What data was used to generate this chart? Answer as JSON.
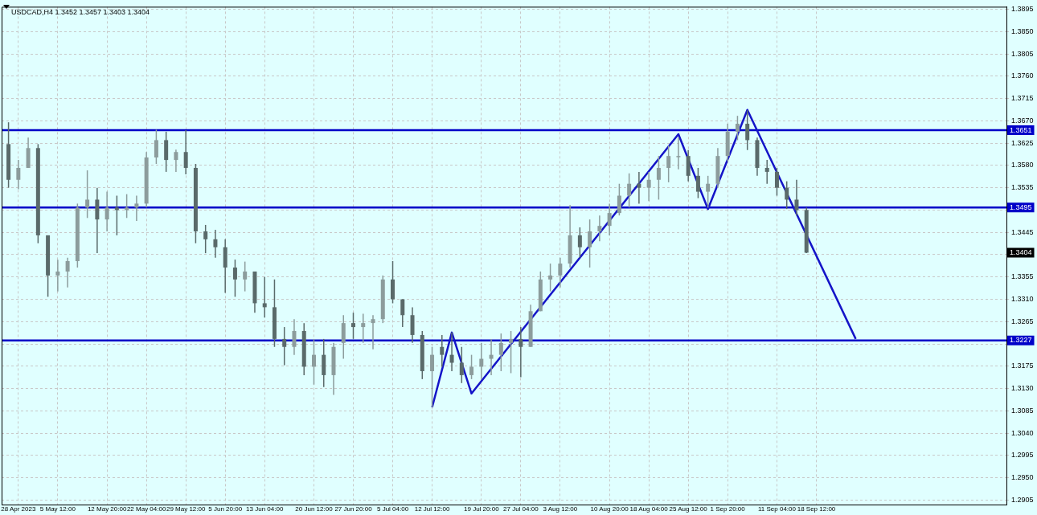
{
  "chart_data": {
    "type": "candlestick",
    "title": "USDCAD,H4 1.3452 1.3457 1.3403 1.3404",
    "categories": [
      null,
      "28 Apr 2023",
      null,
      null,
      null,
      "5 May 12:00",
      null,
      null,
      null,
      null,
      "12 May 20:00",
      null,
      null,
      null,
      "22 May 04:00",
      null,
      null,
      null,
      "29 May 12:00",
      null,
      null,
      null,
      "5 Jun 20:00",
      null,
      null,
      null,
      "13 Jun 04:00",
      null,
      null,
      null,
      null,
      "20 Jun 12:00",
      null,
      null,
      null,
      "27 Jun 20:00",
      null,
      null,
      null,
      "5 Jul 04:00",
      null,
      null,
      null,
      "12 Jul 12:00",
      null,
      null,
      null,
      null,
      "19 Jul 20:00",
      null,
      null,
      null,
      "27 Jul 04:00",
      null,
      null,
      null,
      "3 Aug 12:00",
      null,
      null,
      null,
      null,
      "10 Aug 20:00",
      null,
      null,
      null,
      "18 Aug 04:00",
      null,
      null,
      null,
      "25 Aug 12:00",
      null,
      null,
      null,
      "1 Sep 20:00",
      null,
      null,
      null,
      null,
      "11 Sep 04:00",
      null,
      null,
      null,
      "18 Sep 12:00",
      null,
      null,
      null,
      null,
      null,
      null,
      null,
      null,
      null,
      null,
      null,
      null,
      null,
      null,
      null,
      null,
      null,
      null,
      null
    ],
    "colors": [
      "#5a6a6a",
      "#8c9c9c",
      "#8c9c9c",
      "#5a6a6a",
      "#5a6a6a",
      "#8c9c9c",
      "#8c9c9c",
      "#8c9c9c",
      "#8c9c9c",
      "#5a6a6a",
      "#8c9c9c",
      "#5a6a6a",
      "#8c9c9c",
      "#8c9c9c",
      "#8c9c9c",
      "#8c9c9c",
      "#5a6a6a",
      "#8c9c9c",
      "#5a6a6a",
      "#5a6a6a",
      "#5a6a6a",
      "#5a6a6a",
      "#5a6a6a",
      "#5a6a6a",
      "#8c9c9c",
      "#5a6a6a",
      "#5a6a6a",
      "#5a6a6a",
      "#5a6a6a",
      "#8c9c9c",
      "#5a6a6a",
      "#8c9c9c",
      "#5a6a6a",
      "#8c9c9c",
      "#8c9c9c",
      "#5a6a6a",
      "#8c9c9c",
      "#8c9c9c",
      "#8c9c9c",
      "#5a6a6a",
      "#5a6a6a",
      "#5a6a6a",
      "#5a6a6a",
      "#8c9c9c",
      "#5a6a6a",
      "#5a6a6a",
      "#5a6a6a",
      "#8c9c9c",
      "#8c9c9c",
      "#8c9c9c",
      "#8c9c9c",
      "#8c9c9c",
      "#5a6a6a",
      "#8c9c9c",
      "#8c9c9c",
      "#8c9c9c",
      "#8c9c9c",
      "#8c9c9c",
      "#5a6a6a",
      "#8c9c9c",
      "#8c9c9c",
      "#8c9c9c",
      "#8c9c9c",
      "#8c9c9c",
      "#5a6a6a",
      "#8c9c9c",
      "#8c9c9c",
      "#8c9c9c",
      "#8c9c9c",
      "#5a6a6a",
      "#5a6a6a",
      "#8c9c9c",
      "#8c9c9c",
      "#8c9c9c",
      "#8c9c9c",
      "#5a6a6a",
      "#5a6a6a",
      "#5a6a6a",
      "#5a6a6a",
      "#5a6a6a",
      "#5a6a6a",
      "#5a6a6a",
      null,
      null,
      null,
      null,
      null,
      null,
      null,
      null,
      null,
      null,
      null,
      null,
      null,
      null,
      null,
      null,
      null,
      null,
      null,
      null
    ],
    "ohlc": [
      [
        1.3623,
        1.3667,
        1.3535,
        1.3551
      ],
      [
        1.3551,
        1.3591,
        1.3532,
        1.3575
      ],
      [
        1.3575,
        1.3636,
        1.3575,
        1.3615
      ],
      [
        1.3615,
        1.3623,
        1.3423,
        1.3439
      ],
      [
        1.3439,
        1.3439,
        1.3315,
        1.3358
      ],
      [
        1.3358,
        1.339,
        1.3326,
        1.3366
      ],
      [
        1.3366,
        1.3394,
        1.3334,
        1.3387
      ],
      [
        1.3387,
        1.3503,
        1.3374,
        1.3495
      ],
      [
        1.3495,
        1.357,
        1.3474,
        1.3511
      ],
      [
        1.3511,
        1.3535,
        1.3403,
        1.3471
      ],
      [
        1.3471,
        1.3527,
        1.3447,
        1.3495
      ],
      [
        1.3495,
        1.3519,
        1.3439,
        1.349
      ],
      [
        1.349,
        1.3522,
        1.3474,
        1.3495
      ],
      [
        1.3495,
        1.3519,
        1.3468,
        1.3503
      ],
      [
        1.3503,
        1.3607,
        1.3495,
        1.3596
      ],
      [
        1.3596,
        1.3652,
        1.3583,
        1.3631
      ],
      [
        1.3631,
        1.3648,
        1.3567,
        1.3591
      ],
      [
        1.3591,
        1.3612,
        1.3567,
        1.3607
      ],
      [
        1.3607,
        1.3651,
        1.3562,
        1.3575
      ],
      [
        1.3575,
        1.3583,
        1.3423,
        1.3447
      ],
      [
        1.3447,
        1.346,
        1.3403,
        1.3431
      ],
      [
        1.3431,
        1.345,
        1.3394,
        1.3415
      ],
      [
        1.3415,
        1.3431,
        1.3323,
        1.3374
      ],
      [
        1.3374,
        1.339,
        1.3315,
        1.335
      ],
      [
        1.335,
        1.3386,
        1.3326,
        1.3366
      ],
      [
        1.3366,
        1.3366,
        1.3283,
        1.3302
      ],
      [
        1.3302,
        1.3355,
        1.3273,
        1.3294
      ],
      [
        1.3294,
        1.335,
        1.3214,
        1.323
      ],
      [
        1.323,
        1.3254,
        1.3177,
        1.3214
      ],
      [
        1.3214,
        1.327,
        1.3198,
        1.3246
      ],
      [
        1.3246,
        1.3262,
        1.3157,
        1.3174
      ],
      [
        1.3174,
        1.323,
        1.3138,
        1.3198
      ],
      [
        1.3198,
        1.323,
        1.3133,
        1.3157
      ],
      [
        1.3157,
        1.3222,
        1.3117,
        1.3214
      ],
      [
        1.3222,
        1.3278,
        1.319,
        1.3262
      ],
      [
        1.3262,
        1.3283,
        1.323,
        1.3254
      ],
      [
        1.3254,
        1.3281,
        1.3222,
        1.3262
      ],
      [
        1.3262,
        1.3278,
        1.3209,
        1.327
      ],
      [
        1.327,
        1.3358,
        1.3262,
        1.335
      ],
      [
        1.335,
        1.3387,
        1.3302,
        1.331
      ],
      [
        1.331,
        1.331,
        1.3254,
        1.3278
      ],
      [
        1.3278,
        1.3294,
        1.3222,
        1.3238
      ],
      [
        1.3238,
        1.3246,
        1.3149,
        1.3165
      ],
      [
        1.3165,
        1.3214,
        1.3092,
        1.3198
      ],
      [
        1.3214,
        1.3238,
        1.3174,
        1.3198
      ],
      [
        1.3198,
        1.3243,
        1.3165,
        1.3182
      ],
      [
        1.3182,
        1.3214,
        1.3141,
        1.3157
      ],
      [
        1.3157,
        1.3198,
        1.3149,
        1.3174
      ],
      [
        1.3174,
        1.3222,
        1.3149,
        1.319
      ],
      [
        1.319,
        1.323,
        1.3157,
        1.3198
      ],
      [
        1.3198,
        1.3241,
        1.3165,
        1.3222
      ],
      [
        1.3222,
        1.3246,
        1.3161,
        1.323
      ],
      [
        1.323,
        1.3254,
        1.3153,
        1.3214
      ],
      [
        1.3214,
        1.3299,
        1.3214,
        1.3286
      ],
      [
        1.3286,
        1.3366,
        1.3286,
        1.335
      ],
      [
        1.335,
        1.3382,
        1.3326,
        1.3358
      ],
      [
        1.3358,
        1.3394,
        1.3334,
        1.3382
      ],
      [
        1.3382,
        1.35,
        1.3374,
        1.3439
      ],
      [
        1.3439,
        1.3455,
        1.3394,
        1.3415
      ],
      [
        1.3415,
        1.3471,
        1.3374,
        1.3447
      ],
      [
        1.3447,
        1.3479,
        1.3427,
        1.3458
      ],
      [
        1.3458,
        1.3503,
        1.3439,
        1.3484
      ],
      [
        1.3484,
        1.3543,
        1.3479,
        1.3519
      ],
      [
        1.3519,
        1.3564,
        1.3495,
        1.3543
      ],
      [
        1.3543,
        1.3567,
        1.3503,
        1.3535
      ],
      [
        1.3535,
        1.3567,
        1.3508,
        1.3551
      ],
      [
        1.3551,
        1.3599,
        1.3511,
        1.3575
      ],
      [
        1.3575,
        1.362,
        1.3546,
        1.3599
      ],
      [
        1.3599,
        1.3636,
        1.3572,
        1.3599
      ],
      [
        1.3599,
        1.3611,
        1.3548,
        1.3559
      ],
      [
        1.3559,
        1.3575,
        1.3514,
        1.3527
      ],
      [
        1.3527,
        1.3559,
        1.3495,
        1.3543
      ],
      [
        1.3543,
        1.3615,
        1.3535,
        1.3599
      ],
      [
        1.3599,
        1.3664,
        1.3588,
        1.3648
      ],
      [
        1.3648,
        1.368,
        1.3631,
        1.3664
      ],
      [
        1.3664,
        1.3691,
        1.3611,
        1.3631
      ],
      [
        1.3631,
        1.3636,
        1.3559,
        1.3575
      ],
      [
        1.3575,
        1.3591,
        1.3543,
        1.3567
      ],
      [
        1.3567,
        1.3575,
        1.3519,
        1.3535
      ],
      [
        1.3535,
        1.3548,
        1.3492,
        1.3511
      ],
      [
        1.3511,
        1.3551,
        1.3479,
        1.349
      ],
      [
        1.349,
        1.3495,
        1.3403,
        1.3404
      ],
      null,
      null,
      null,
      null,
      null,
      null,
      null,
      null,
      null,
      null,
      null,
      null,
      null,
      null,
      null,
      null,
      null,
      null,
      null,
      null
    ],
    "series": [
      {
        "type": "line",
        "color": "#1414c8",
        "values": [
          null,
          null,
          null,
          null,
          null,
          null,
          null,
          null,
          null,
          null,
          null,
          null,
          null,
          null,
          null,
          null,
          null,
          null,
          null,
          null,
          null,
          null,
          null,
          null,
          null,
          null,
          null,
          null,
          null,
          null,
          null,
          null,
          null,
          null,
          null,
          null,
          null,
          null,
          null,
          null,
          null,
          null,
          null,
          1.3092,
          null,
          1.3243,
          null,
          1.312,
          null,
          null,
          null,
          null,
          null,
          null,
          null,
          null,
          null,
          null,
          null,
          null,
          null,
          null,
          null,
          null,
          null,
          null,
          null,
          null,
          1.3643,
          null,
          null,
          1.3492,
          null,
          null,
          null,
          1.3692,
          null,
          null,
          null,
          null,
          null,
          null,
          null,
          null,
          null,
          null,
          1.323,
          null,
          null,
          null,
          null,
          null,
          null,
          null,
          null,
          null,
          null,
          null,
          null,
          null,
          null,
          null
        ]
      }
    ],
    "ylim": [
      1.2896,
      1.39
    ],
    "yticks": [
      1.3895,
      {
        "value": 1.385,
        "label": "1.3850"
      },
      1.3805,
      {
        "value": 1.376,
        "label": "1.3760"
      },
      1.3715,
      {
        "value": 1.367,
        "label": "1.3670"
      },
      1.3625,
      {
        "value": 1.358,
        "label": "1.3580"
      },
      1.3535,
      {
        "value": 1.349,
        "label": null
      },
      1.3445,
      {
        "value": 1.34,
        "label": null
      },
      1.3355,
      {
        "value": 1.331,
        "label": "1.3310"
      },
      1.3265,
      {
        "value": 1.322,
        "label": null
      },
      1.3175,
      {
        "value": 1.313,
        "label": "1.3130"
      },
      1.3085,
      {
        "value": 1.304,
        "label": "1.3040"
      },
      1.2995,
      {
        "value": 1.295,
        "label": "1.2950"
      },
      1.2905
    ],
    "grid": true,
    "ref_lines": [
      {
        "axis": "y",
        "value": 1.3651,
        "label": "1.3651",
        "color": "#0000c8"
      },
      {
        "axis": "y",
        "value": 1.3495,
        "label": "1.3495",
        "color": "#0000c8"
      },
      {
        "axis": "y",
        "value": 1.3227,
        "label": "1.3227",
        "color": "#0000c8"
      }
    ],
    "annotations": [
      {
        "text": "1.3404",
        "y": 1.3404
      }
    ]
  }
}
